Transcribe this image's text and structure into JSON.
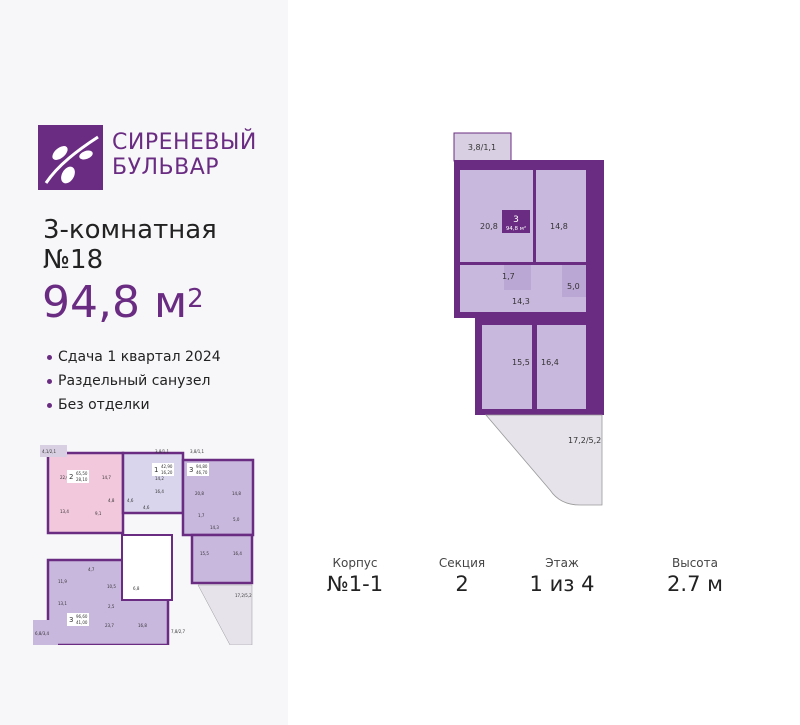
{
  "brand": {
    "line1": "СИРЕНЕВЫЙ",
    "line2": "БУЛЬВАР",
    "color": "#6a2c82"
  },
  "apartment": {
    "rooms": "3-комнатная",
    "number": "№18",
    "area": "94,8 м",
    "area_sup": "2"
  },
  "features": [
    "Сдача 1 квартал 2024",
    "Раздельный санузел",
    "Без отделки"
  ],
  "plan": {
    "badge_rooms": "3",
    "badge_area": "94,8 м²",
    "rooms": [
      "3,8/1,1",
      "20,8",
      "14,8",
      "1,7",
      "5,0",
      "14,3",
      "15,5",
      "16,4",
      "17,2/5,2"
    ]
  },
  "key_plan": {
    "labels": [
      "4,1/2,1",
      "22,0",
      "14,7",
      "14,2",
      "3,8/1,1",
      "3,8/1,1",
      "16,4",
      "20,8",
      "14,8",
      "13,4",
      "9,1",
      "4,8",
      "4,6",
      "4,6",
      "1,7",
      "5,0",
      "14,3",
      "15,5",
      "16,4",
      "17,2/5,2",
      "11,9",
      "13,1",
      "10,5",
      "6,8",
      "23,7",
      "16,8",
      "6,8/3,4",
      "7,8/2,7",
      "4,7",
      "2,5"
    ],
    "units": [
      {
        "rooms": "2",
        "a": "65,50",
        "b": "28,10"
      },
      {
        "rooms": "1",
        "a": "42,90",
        "b": "16,20"
      },
      {
        "rooms": "3",
        "a": "94,80",
        "b": "46,70"
      },
      {
        "rooms": "3",
        "a": "96,60",
        "b": "41,00"
      }
    ]
  },
  "stats": [
    {
      "label": "Корпус",
      "value": "№1-1"
    },
    {
      "label": "Секция",
      "value": "2"
    },
    {
      "label": "Этаж",
      "value": "1 из 4"
    },
    {
      "label": "Высота",
      "value": "2.7 м"
    }
  ]
}
